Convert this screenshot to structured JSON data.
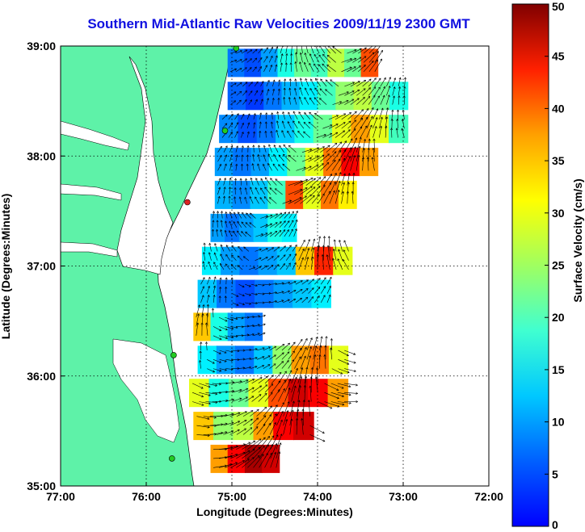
{
  "title": "Southern Mid-Atlantic Raw Velocities 2009/11/19 2300 GMT",
  "map": {
    "xlabel": "Longitude (Degrees:Minutes)",
    "ylabel": "Latitude (Degrees:Minutes)",
    "lon_range": [
      -77,
      -72
    ],
    "lat_range": [
      35,
      39
    ],
    "x_ticks": [
      "77:00",
      "76:00",
      "75:00",
      "74:00",
      "73:00",
      "72:00"
    ],
    "y_ticks": [
      "39:00",
      "38:00",
      "37:00",
      "36:00",
      "35:00"
    ],
    "land_color": "#5ef2a8",
    "grid": "dotted"
  },
  "colorbar": {
    "label": "Surface Velocity (cm/s)",
    "range": [
      0,
      50
    ],
    "ticks": [
      "0",
      "5",
      "10",
      "15",
      "20",
      "25",
      "30",
      "35",
      "40",
      "45",
      "50"
    ],
    "colormap": "jet"
  },
  "stations": [
    {
      "lon": -74.95,
      "lat": 38.98,
      "color": "#22cc22"
    },
    {
      "lon": -75.08,
      "lat": 38.23,
      "color": "#22cc22"
    },
    {
      "lon": -75.52,
      "lat": 37.58,
      "color": "#dd2222"
    },
    {
      "lon": -75.68,
      "lat": 36.19,
      "color": "#22cc22"
    },
    {
      "lon": -75.7,
      "lat": 35.25,
      "color": "#22cc22"
    }
  ],
  "velocity_regions": [
    {
      "lat": 38.85,
      "lon_min": -75.05,
      "lon_max": -73.3,
      "speeds": [
        12,
        10,
        14,
        20,
        24,
        22,
        28,
        24,
        40
      ]
    },
    {
      "lat": 38.55,
      "lon_min": -75.05,
      "lon_max": -72.95,
      "speeds": [
        11,
        9,
        12,
        15,
        18,
        22,
        26,
        28,
        24,
        20
      ]
    },
    {
      "lat": 38.25,
      "lon_min": -75.15,
      "lon_max": -72.95,
      "speeds": [
        13,
        10,
        12,
        16,
        20,
        24,
        30,
        36,
        30,
        22
      ]
    },
    {
      "lat": 37.95,
      "lon_min": -75.2,
      "lon_max": -73.3,
      "speeds": [
        14,
        12,
        14,
        18,
        24,
        30,
        38,
        44,
        36
      ]
    },
    {
      "lat": 37.65,
      "lon_min": -75.2,
      "lon_max": -73.55,
      "speeds": [
        15,
        13,
        16,
        22,
        40,
        30,
        38,
        32
      ]
    },
    {
      "lat": 37.35,
      "lon_min": -75.25,
      "lon_max": -74.25,
      "speeds": [
        14,
        12,
        14,
        16,
        20,
        18
      ]
    },
    {
      "lat": 37.05,
      "lon_min": -75.35,
      "lon_max": -73.6,
      "speeds": [
        18,
        14,
        12,
        14,
        16,
        34,
        42,
        30
      ]
    },
    {
      "lat": 36.75,
      "lon_min": -75.4,
      "lon_max": -73.85,
      "speeds": [
        16,
        12,
        10,
        12,
        14,
        16,
        18
      ]
    },
    {
      "lat": 36.45,
      "lon_min": -75.45,
      "lon_max": -74.65,
      "speeds": [
        34,
        20,
        14,
        12
      ]
    },
    {
      "lat": 36.15,
      "lon_min": -75.4,
      "lon_max": -73.65,
      "speeds": [
        18,
        14,
        12,
        16,
        26,
        36,
        38,
        30
      ]
    },
    {
      "lat": 35.85,
      "lon_min": -75.5,
      "lon_max": -73.65,
      "speeds": [
        30,
        20,
        24,
        30,
        40,
        46,
        44,
        36
      ]
    },
    {
      "lat": 35.55,
      "lon_min": -75.45,
      "lon_max": -74.05,
      "speeds": [
        34,
        26,
        28,
        36,
        44,
        46
      ]
    },
    {
      "lat": 35.25,
      "lon_min": -75.25,
      "lon_max": -74.45,
      "speeds": [
        36,
        44,
        48,
        46
      ]
    }
  ]
}
